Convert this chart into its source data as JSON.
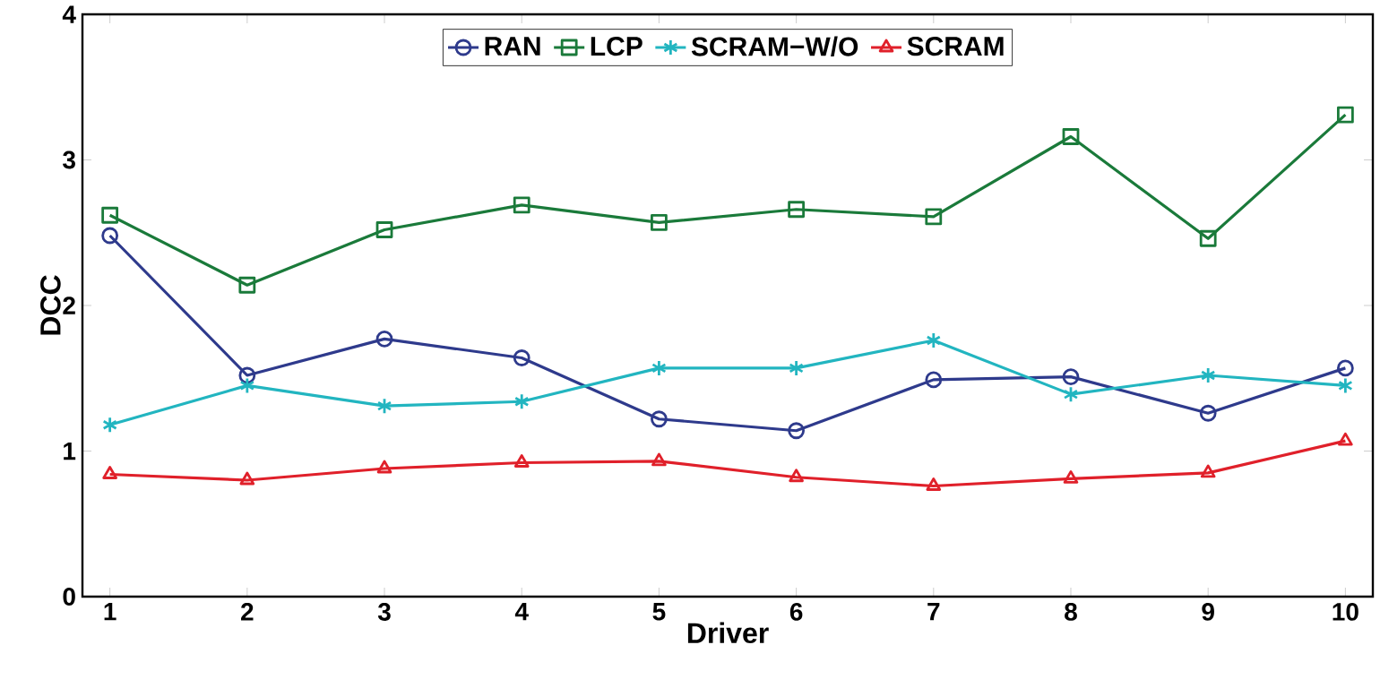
{
  "chart_data": {
    "type": "line",
    "xlabel": "Driver",
    "ylabel": "DCC",
    "x": [
      1,
      2,
      3,
      4,
      5,
      6,
      7,
      8,
      9,
      10
    ],
    "xlim": [
      0.8,
      10.2
    ],
    "xticks": [
      1,
      2,
      3,
      4,
      5,
      6,
      7,
      8,
      9,
      10
    ],
    "ylim": [
      0,
      4
    ],
    "yticks": [
      0,
      1,
      2,
      3,
      4
    ],
    "grid": false,
    "legend": "top",
    "line_style": "solid",
    "series": [
      {
        "name": "RAN",
        "color": "#2e3a8c",
        "marker": "circle",
        "values": [
          2.48,
          1.52,
          1.77,
          1.64,
          1.22,
          1.14,
          1.49,
          1.51,
          1.26,
          1.57
        ]
      },
      {
        "name": "LCP",
        "color": "#1a7a3a",
        "marker": "square",
        "values": [
          2.62,
          2.14,
          2.52,
          2.69,
          2.57,
          2.66,
          2.61,
          3.16,
          2.46,
          3.31
        ]
      },
      {
        "name": "SCRAM−W/O",
        "color": "#22b5c0",
        "marker": "cross",
        "values": [
          1.18,
          1.45,
          1.31,
          1.34,
          1.57,
          1.57,
          1.76,
          1.39,
          1.52,
          1.45
        ]
      },
      {
        "name": "SCRAM",
        "color": "#e0202a",
        "marker": "triangle",
        "values": [
          0.84,
          0.8,
          0.88,
          0.92,
          0.93,
          0.82,
          0.76,
          0.81,
          0.85,
          1.07
        ]
      }
    ]
  }
}
